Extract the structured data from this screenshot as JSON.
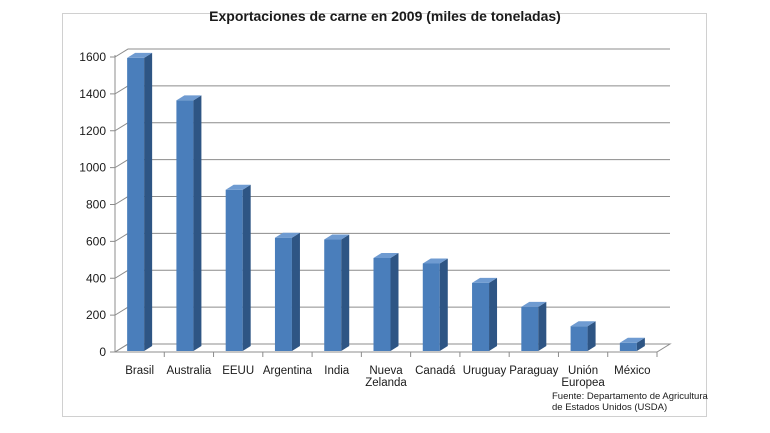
{
  "chart_data": {
    "type": "bar",
    "title": "Exportaciones de carne en 2009 (miles de toneladas)",
    "categories": [
      [
        "Brasil"
      ],
      [
        "Australia"
      ],
      [
        "EEUU"
      ],
      [
        "Argentina"
      ],
      [
        "India"
      ],
      [
        "Nueva",
        "Zelanda"
      ],
      [
        "Canadá"
      ],
      [
        "Uruguay"
      ],
      [
        "Paraguay"
      ],
      [
        "Unión",
        "Europea"
      ],
      [
        "México"
      ]
    ],
    "values": [
      1595,
      1365,
      880,
      620,
      610,
      510,
      480,
      375,
      245,
      140,
      50
    ],
    "ylim": [
      0,
      1600
    ],
    "yticks": [
      0,
      200,
      400,
      600,
      800,
      1000,
      1200,
      1400,
      1600
    ],
    "grid": true,
    "bar_color": "#4a7ebb",
    "bar_side_color": "#2e5584",
    "bar_top_color": "#6f9bd1",
    "source_note": [
      "Fuente: Departamento de Agricultura",
      "de Estados Unidos (USDA)"
    ]
  }
}
